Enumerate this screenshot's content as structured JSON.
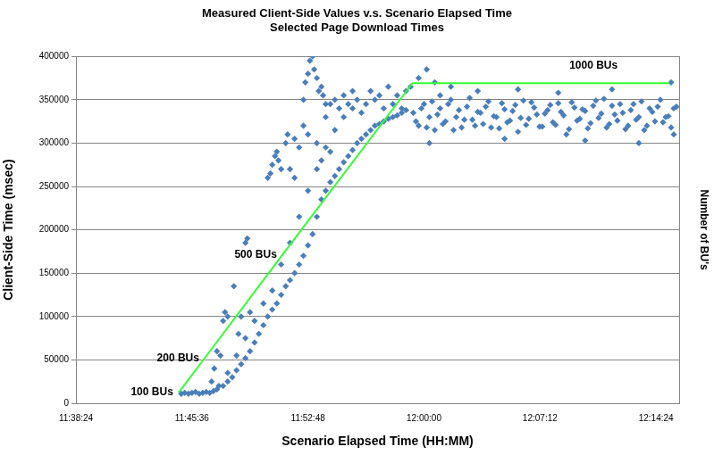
{
  "chart_data": {
    "type": "scatter",
    "title": "Measured Client-Side Values v.s. Scenario Elapsed Time",
    "subtitle": "Selected Page Download Times",
    "x_label": "Scenario Elapsed Time (HH:MM)",
    "y_label": "Client-Side Time (msec)",
    "y2_label": "Number of BU's",
    "xlim": [
      41904,
      44150
    ],
    "xticks": [
      {
        "value": 41904,
        "label": "11:38:24"
      },
      {
        "value": 42336,
        "label": "11:45:36"
      },
      {
        "value": 42768,
        "label": "11:52:48"
      },
      {
        "value": 43200,
        "label": "12:00:00"
      },
      {
        "value": 43632,
        "label": "12:07:12"
      },
      {
        "value": 44064,
        "label": "12:14:24"
      }
    ],
    "ylim": [
      0,
      400000
    ],
    "yticks": [
      0,
      50000,
      100000,
      150000,
      200000,
      250000,
      300000,
      350000,
      400000
    ],
    "y2lim": [
      69,
      1078
    ],
    "grid": true,
    "series": [
      {
        "type": "scatter",
        "color": "#4a7ebb",
        "marker": "diamond",
        "x": [
          42296,
          42309,
          42323,
          42336,
          42349,
          42363,
          42376,
          42389,
          42402,
          42416,
          42429,
          42436,
          42469,
          42502,
          42535,
          42569,
          42602,
          42635,
          42668,
          42701,
          42735,
          42768,
          42801,
          42834,
          42868,
          42901,
          42934,
          42452,
          42486,
          42519,
          42552,
          42585,
          42618,
          42652,
          42685,
          42718,
          42751,
          42785,
          42801,
          42818,
          42851,
          42884,
          42918,
          42951,
          42984,
          43017,
          43050,
          43084,
          43117,
          42469,
          42502,
          42535,
          42569,
          42602,
          42635,
          42668,
          42701,
          42735,
          42768,
          42834,
          42868,
          42901,
          42934,
          42967,
          43001,
          43034,
          43067,
          43100,
          43133,
          42834,
          42851,
          42868,
          42884,
          42901,
          42918,
          42934,
          42951,
          42967,
          42984,
          43001,
          43017,
          43034,
          43050,
          43067,
          43084,
          43100,
          43117,
          43133,
          42409,
          42419,
          42429,
          42442,
          42452,
          42459,
          42469,
          42492,
          42535,
          42542,
          42509,
          42519,
          42552,
          42618,
          42628,
          42635,
          42645,
          42652,
          42658,
          42668,
          42685,
          42692,
          42718,
          42735,
          42751,
          42758,
          42768,
          42775,
          42785,
          42791,
          42801,
          42808,
          42818,
          42824,
          42834,
          42751,
          42768,
          42801,
          42818,
          42851,
          42701,
          42718,
          43160,
          43180,
          43200,
          43220,
          43240,
          43260,
          43280,
          43300,
          43320,
          43340,
          43360,
          43380,
          43400,
          43420,
          43440,
          43460,
          43480,
          43500,
          43520,
          43540,
          43560,
          43580,
          43600,
          43620,
          43640,
          43660,
          43680,
          43700,
          43720,
          43740,
          43760,
          43780,
          43800,
          43820,
          43840,
          43860,
          43880,
          43900,
          43920,
          43940,
          43960,
          43980,
          44000,
          44020,
          44040,
          44060,
          44080,
          44100,
          44120,
          44140,
          43170,
          43190,
          43210,
          43230,
          43250,
          43270,
          43290,
          43310,
          43330,
          43350,
          43370,
          43390,
          43410,
          43430,
          43450,
          43470,
          43490,
          43510,
          43530,
          43550,
          43570,
          43590,
          43610,
          43630,
          43650,
          43670,
          43690,
          43710,
          43730,
          43750,
          43770,
          43790,
          43810,
          43830,
          43850,
          43870,
          43890,
          43910,
          43930,
          43950,
          43970,
          43990,
          44010,
          44030,
          44050,
          44070,
          44090,
          44110,
          44130,
          43180,
          43210,
          43240,
          43300,
          43400,
          43550,
          43700,
          43900,
          44120,
          43220,
          43500,
          43800,
          44000,
          44130,
          43150,
          43260
        ],
        "values": [
          11000,
          12000,
          11000,
          12000,
          13000,
          11000,
          12000,
          13000,
          12000,
          14000,
          16000,
          20000,
          35000,
          55000,
          75000,
          95000,
          115000,
          130000,
          160000,
          185000,
          215000,
          245000,
          270000,
          295000,
          315000,
          330000,
          340000,
          20000,
          30000,
          45000,
          60000,
          80000,
          100000,
          115000,
          135000,
          150000,
          170000,
          195000,
          215000,
          235000,
          255000,
          270000,
          285000,
          300000,
          310000,
          320000,
          325000,
          330000,
          335000,
          25000,
          38000,
          52000,
          70000,
          90000,
          108000,
          125000,
          142000,
          160000,
          182000,
          245000,
          262000,
          278000,
          292000,
          305000,
          315000,
          322000,
          328000,
          332000,
          338000,
          330000,
          345000,
          350000,
          340000,
          355000,
          345000,
          360000,
          350000,
          335000,
          345000,
          360000,
          350000,
          355000,
          340000,
          365000,
          345000,
          355000,
          340000,
          360000,
          25000,
          40000,
          60000,
          55000,
          95000,
          105000,
          100000,
          135000,
          185000,
          190000,
          80000,
          100000,
          105000,
          260000,
          265000,
          275000,
          285000,
          290000,
          280000,
          270000,
          300000,
          310000,
          305000,
          295000,
          350000,
          370000,
          380000,
          395000,
          400000,
          385000,
          375000,
          360000,
          365000,
          355000,
          345000,
          320000,
          310000,
          300000,
          280000,
          290000,
          270000,
          260000,
          335000,
          320000,
          345000,
          330000,
          315000,
          340000,
          325000,
          350000,
          330000,
          318000,
          342000,
          327000,
          336000,
          322000,
          348000,
          331000,
          317000,
          339000,
          326000,
          344000,
          329000,
          321000,
          347000,
          333000,
          319000,
          338000,
          324000,
          346000,
          332000,
          316000,
          341000,
          328000,
          337000,
          323000,
          349000,
          334000,
          318000,
          343000,
          326000,
          335000,
          320000,
          345000,
          330000,
          315000,
          340000,
          325000,
          350000,
          330000,
          318000,
          342000,
          325000,
          340000,
          318000,
          348000,
          333000,
          322000,
          345000,
          315000,
          338000,
          327000,
          352000,
          320000,
          335000,
          342000,
          318000,
          330000,
          346000,
          324000,
          337000,
          313000,
          349000,
          328000,
          341000,
          319000,
          334000,
          344000,
          321000,
          336000,
          310000,
          347000,
          326000,
          339000,
          317000,
          343000,
          329000,
          351000,
          322000,
          333000,
          345000,
          316000,
          338000,
          327000,
          348000,
          320000,
          336000,
          342000,
          324000,
          331000,
          340000,
          375000,
          385000,
          370000,
          365000,
          360000,
          362000,
          358000,
          362000,
          370000,
          300000,
          305000,
          303000,
          300000,
          310000,
          365000,
          355000
        ]
      },
      {
        "type": "line",
        "color": "#33ff33",
        "line_style": "solid",
        "axis": "y2",
        "x": [
          42286,
          42383,
          42672,
          43157,
          44114
        ],
        "values": [
          100,
          200,
          500,
          1000,
          1000
        ]
      }
    ],
    "annotations": [
      {
        "text": "100 BUs",
        "x": 42286,
        "y": 100,
        "axis": "y2"
      },
      {
        "text": "200 BUs",
        "x": 42383,
        "y": 200,
        "axis": "y2"
      },
      {
        "text": "500 BUs",
        "x": 42672,
        "y": 500,
        "axis": "y2"
      },
      {
        "text": "1000 BUs",
        "x": 43941,
        "y": 1050,
        "axis": "y2"
      }
    ]
  }
}
